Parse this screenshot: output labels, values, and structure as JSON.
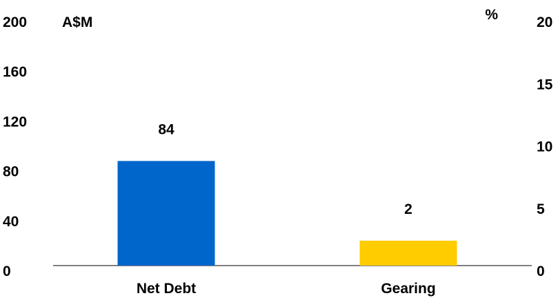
{
  "chart_data": {
    "type": "bar",
    "categories": [
      "Net Debt",
      "Gearing"
    ],
    "series": [
      {
        "values": [
          84,
          null
        ],
        "axis": "left",
        "color": "#0066CC"
      },
      {
        "values": [
          null,
          2
        ],
        "axis": "right",
        "color": "#FFCC00"
      }
    ],
    "data_labels": [
      "84",
      "2"
    ],
    "left_axis": {
      "label": "A$M",
      "ticks": [
        0,
        40,
        80,
        120,
        160,
        200
      ],
      "ylim": [
        0,
        200
      ]
    },
    "right_axis": {
      "label": "%",
      "ticks": [
        0,
        5,
        10,
        15,
        20
      ],
      "ylim": [
        0,
        20
      ]
    },
    "grid": false,
    "legend": "none"
  }
}
